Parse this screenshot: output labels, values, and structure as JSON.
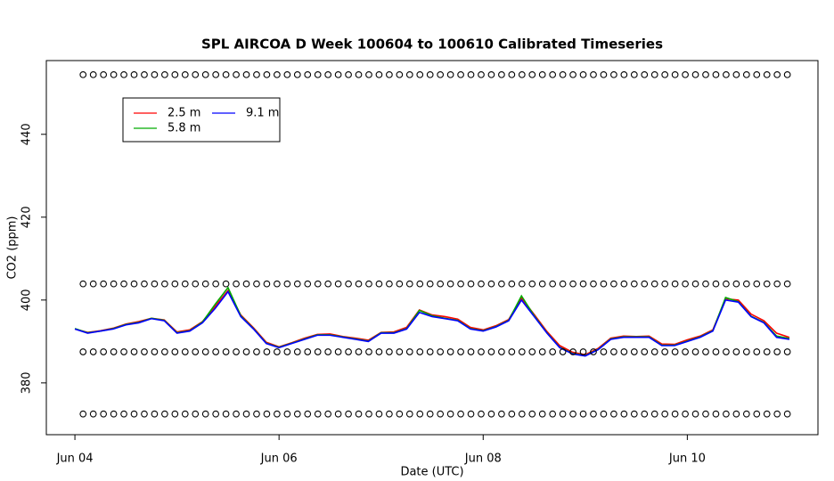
{
  "chart_data": {
    "type": "line",
    "title": "SPL AIRCOA D  Week 100604 to 100610  Calibrated Timeseries",
    "xlabel": "Date (UTC)",
    "ylabel": "CO2 (ppm)",
    "xlim": [
      -0.28,
      7.28
    ],
    "ylim": [
      367.5,
      457.8
    ],
    "xticks": [
      {
        "value": 0,
        "label": "Jun 04"
      },
      {
        "value": 2,
        "label": "Jun 06"
      },
      {
        "value": 4,
        "label": "Jun 08"
      },
      {
        "value": 6,
        "label": "Jun 10"
      }
    ],
    "yticks": [
      380,
      400,
      420,
      440
    ],
    "x": [
      0,
      0.125,
      0.25,
      0.375,
      0.5,
      0.625,
      0.75,
      0.875,
      1,
      1.125,
      1.25,
      1.375,
      1.5,
      1.625,
      1.75,
      1.875,
      2,
      2.125,
      2.25,
      2.375,
      2.5,
      2.625,
      2.75,
      2.875,
      3,
      3.125,
      3.25,
      3.375,
      3.5,
      3.625,
      3.75,
      3.875,
      4,
      4.125,
      4.25,
      4.375,
      4.5,
      4.625,
      4.75,
      4.875,
      5,
      5.125,
      5.25,
      5.375,
      5.5,
      5.625,
      5.75,
      5.875,
      6,
      6.125,
      6.25,
      6.375,
      6.5,
      6.625,
      6.75,
      6.875,
      7
    ],
    "series": [
      {
        "name": "2.5 m",
        "color": "#ff0000",
        "values": [
          393,
          392.2,
          392.6,
          393.2,
          394.2,
          394.8,
          395.6,
          395.2,
          392.3,
          392.8,
          394.8,
          398.5,
          402.3,
          396.4,
          393.3,
          389.8,
          388.7,
          389.7,
          390.8,
          391.7,
          391.8,
          391.2,
          390.8,
          390.3,
          392.2,
          392.3,
          393.4,
          397.6,
          396.4,
          396,
          395.4,
          393.4,
          392.8,
          393.8,
          395.3,
          400.5,
          396.5,
          392.4,
          389,
          387.4,
          386.8,
          388.3,
          390.8,
          391.3,
          391.2,
          391.3,
          389.4,
          389.3,
          390.4,
          391.3,
          392.8,
          400.3,
          400,
          396.6,
          395,
          392,
          391
        ]
      },
      {
        "name": "5.8 m",
        "color": "#00aa00",
        "values": [
          393.1,
          392.1,
          392.5,
          393.1,
          394.1,
          394.6,
          395.6,
          395.1,
          392.1,
          392.6,
          394.7,
          399,
          403,
          396.2,
          393.1,
          389.6,
          388.6,
          389.6,
          390.6,
          391.6,
          391.6,
          391.1,
          390.6,
          390.1,
          392.1,
          392.1,
          393.1,
          397.5,
          396.2,
          395.6,
          395.1,
          393.1,
          392.6,
          393.6,
          395.1,
          401,
          396.2,
          392.1,
          388.6,
          387.1,
          386.6,
          388.1,
          390.6,
          391.1,
          391.1,
          391.1,
          389.1,
          389.1,
          390.1,
          391.1,
          392.6,
          400.6,
          399.6,
          396.1,
          394.6,
          391.3,
          390.7
        ]
      },
      {
        "name": "9.1 m",
        "color": "#0000ff",
        "values": [
          393,
          392,
          392.5,
          393,
          394,
          394.5,
          395.5,
          395,
          392,
          392.5,
          394.5,
          398,
          402,
          396,
          393,
          389.5,
          388.5,
          389.5,
          390.5,
          391.5,
          391.5,
          391,
          390.5,
          390,
          392,
          392,
          393,
          397,
          396,
          395.5,
          395,
          393,
          392.5,
          393.5,
          395,
          400,
          396,
          392,
          388.5,
          387,
          386.5,
          388,
          390.5,
          391,
          391,
          391,
          389,
          389,
          390,
          391,
          392.5,
          400,
          399.5,
          396,
          394.5,
          391,
          390.5
        ]
      }
    ],
    "markers": {
      "x": [
        0.08,
        0.18,
        0.28,
        0.38,
        0.48,
        0.58,
        0.68,
        0.78,
        0.88,
        0.98,
        1.08,
        1.18,
        1.28,
        1.38,
        1.48,
        1.58,
        1.68,
        1.78,
        1.88,
        1.98,
        2.08,
        2.18,
        2.28,
        2.38,
        2.48,
        2.58,
        2.68,
        2.78,
        2.88,
        2.98,
        3.08,
        3.18,
        3.28,
        3.38,
        3.48,
        3.58,
        3.68,
        3.78,
        3.88,
        3.98,
        4.08,
        4.18,
        4.28,
        4.38,
        4.48,
        4.58,
        4.68,
        4.78,
        4.88,
        4.98,
        5.08,
        5.18,
        5.28,
        5.38,
        5.48,
        5.58,
        5.68,
        5.78,
        5.88,
        5.98,
        6.08,
        6.18,
        6.28,
        6.38,
        6.48,
        6.58,
        6.68,
        6.78,
        6.88,
        6.98
      ],
      "levels": [
        454.4,
        403.9,
        387.5,
        372.5
      ]
    }
  }
}
